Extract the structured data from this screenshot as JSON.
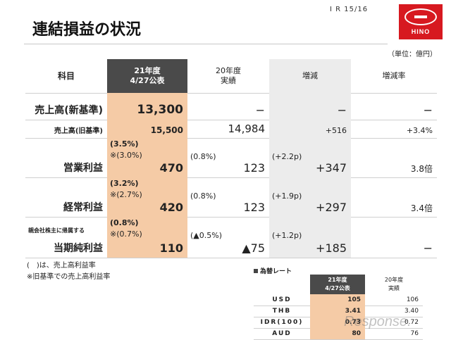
{
  "page_number": "I R  15/16",
  "title": "連結損益の状況",
  "unit": "（単位：億円）",
  "logo": {
    "text": "HINO",
    "color": "#d71920"
  },
  "table": {
    "headers": [
      "科目",
      "21年度",
      "4/27公表",
      "20年度",
      "実績",
      "増減",
      "増減率"
    ],
    "rows": [
      {
        "label": "売上高(新基準)",
        "c1": "13,300",
        "c2": "−",
        "c3": "−",
        "c4": "−"
      },
      {
        "label": "売上高(旧基準)",
        "c1": "15,500",
        "c2": "14,984",
        "c3": "+516",
        "c4": "+3.4%"
      },
      {
        "label": "営業利益",
        "c1_note1": "(3.5%)",
        "c1_note2": "※(3.0%)",
        "c1": "470",
        "c2_note": "(0.8%)",
        "c2": "123",
        "c3_note": "(+2.2p)",
        "c3": "+347",
        "c4": "3.8倍"
      },
      {
        "label": "経常利益",
        "c1_note1": "(3.2%)",
        "c1_note2": "※(2.7%)",
        "c1": "420",
        "c2_note": "(0.8%)",
        "c2": "123",
        "c3_note": "(+1.9p)",
        "c3": "+297",
        "c4": "3.4倍"
      },
      {
        "label_small": "親会社株主に帰属する",
        "label": "当期純利益",
        "c1_note1": "(0.8%)",
        "c1_note2": "※(0.7%)",
        "c1": "110",
        "c2_note": "(▲0.5%)",
        "c2": "▲75",
        "c3_note": "(+1.2p)",
        "c3": "+185",
        "c4": "−"
      }
    ]
  },
  "notes": [
    "(　)は、売上高利益率",
    "※旧基準での売上高利益率"
  ],
  "fx": {
    "title": "為替レート",
    "headers": [
      "21年度",
      "4/27公表",
      "20年度",
      "実績"
    ],
    "rows": [
      {
        "cur": "USD",
        "a": "105",
        "b": "106"
      },
      {
        "cur": "THB",
        "a": "3.41",
        "b": "3.40"
      },
      {
        "cur": "IDR(100)",
        "a": "0.73",
        "b": "0.72"
      },
      {
        "cur": "AUD",
        "a": "80",
        "b": "76"
      }
    ]
  },
  "watermark": "Response."
}
